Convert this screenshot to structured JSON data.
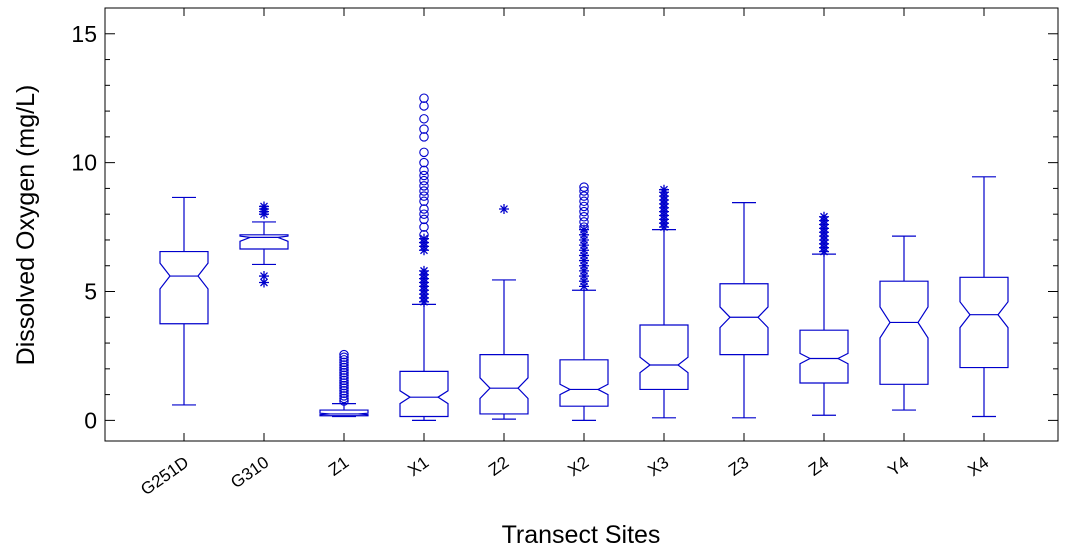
{
  "chart_data": {
    "type": "box",
    "xlabel": "Transect Sites",
    "ylabel": "Dissolved Oxygen (mg/L)",
    "ylim": [
      -0.8,
      16
    ],
    "yticks": [
      0,
      5,
      10,
      15
    ],
    "grid": false,
    "color": "#0000cc",
    "categories": [
      "G251D",
      "G310",
      "Z1",
      "X1",
      "Z2",
      "X2",
      "X3",
      "Z3",
      "Z4",
      "Y4",
      "X4"
    ],
    "boxes": [
      {
        "name": "G251D",
        "min": 0.6,
        "q1": 3.75,
        "median": 5.6,
        "q3": 6.55,
        "max": 8.65,
        "notch": [
          5.1,
          6.1
        ],
        "outliers": []
      },
      {
        "name": "G310",
        "min": 6.05,
        "q1": 6.65,
        "median": 7.1,
        "q3": 7.2,
        "max": 7.7,
        "notch": [
          6.95,
          7.15
        ],
        "outliers": [
          {
            "marker": "star",
            "values": [
              5.35,
              5.6,
              8.0,
              8.1,
              8.2,
              8.3
            ]
          }
        ]
      },
      {
        "name": "Z1",
        "min": 0.15,
        "q1": 0.18,
        "median": 0.25,
        "q3": 0.4,
        "max": 0.65,
        "notch": [
          0.22,
          0.28
        ],
        "outliers": [
          {
            "marker": "circle",
            "values": [
              0.75,
              0.85,
              0.95,
              1.05,
              1.15,
              1.25,
              1.35,
              1.45,
              1.55,
              1.65,
              1.75,
              1.85,
              1.95,
              2.05,
              2.15,
              2.25,
              2.35,
              2.45,
              2.55
            ]
          }
        ]
      },
      {
        "name": "X1",
        "min": 0.0,
        "q1": 0.15,
        "median": 0.9,
        "q3": 1.9,
        "max": 4.5,
        "notch": [
          0.65,
          1.15
        ],
        "outliers": [
          {
            "marker": "star",
            "values": [
              4.6,
              4.75,
              4.9,
              5.05,
              5.2,
              5.35,
              5.5,
              5.65,
              5.8,
              6.6,
              6.75,
              6.9,
              7.05
            ]
          },
          {
            "marker": "circle",
            "values": [
              7.2,
              7.5,
              7.8,
              8.0,
              8.2,
              8.5,
              8.7,
              8.9,
              9.1,
              9.3,
              9.5,
              9.7,
              10.0,
              10.4,
              11.0,
              11.3,
              11.7,
              12.2,
              12.5
            ]
          }
        ]
      },
      {
        "name": "Z2",
        "min": 0.05,
        "q1": 0.25,
        "median": 1.25,
        "q3": 2.55,
        "max": 5.45,
        "notch": [
          0.85,
          1.65
        ],
        "outliers": [
          {
            "marker": "star",
            "values": [
              8.2
            ]
          }
        ]
      },
      {
        "name": "X2",
        "min": 0.0,
        "q1": 0.55,
        "median": 1.2,
        "q3": 2.35,
        "max": 5.05,
        "notch": [
          1.0,
          1.4
        ],
        "outliers": [
          {
            "marker": "star",
            "values": [
              5.2,
              5.4,
              5.6,
              5.8,
              6.0,
              6.2,
              6.4,
              6.6,
              6.8,
              7.0,
              7.2,
              7.4
            ]
          },
          {
            "marker": "circle",
            "values": [
              7.5,
              7.7,
              7.9,
              8.1,
              8.3,
              8.5,
              8.7,
              8.9,
              9.05
            ]
          }
        ]
      },
      {
        "name": "X3",
        "min": 0.1,
        "q1": 1.2,
        "median": 2.15,
        "q3": 3.7,
        "max": 7.4,
        "notch": [
          1.85,
          2.45
        ],
        "outliers": [
          {
            "marker": "star",
            "values": [
              7.5,
              7.65,
              7.8,
              7.95,
              8.1,
              8.25,
              8.4,
              8.55,
              8.7,
              8.85,
              8.95
            ]
          }
        ]
      },
      {
        "name": "Z3",
        "min": 0.1,
        "q1": 2.55,
        "median": 4.0,
        "q3": 5.3,
        "max": 8.45,
        "notch": [
          3.6,
          4.4
        ],
        "outliers": []
      },
      {
        "name": "Z4",
        "min": 0.2,
        "q1": 1.45,
        "median": 2.4,
        "q3": 3.5,
        "max": 6.45,
        "notch": [
          2.2,
          2.6
        ],
        "outliers": [
          {
            "marker": "star",
            "values": [
              6.55,
              6.7,
              6.85,
              7.0,
              7.15,
              7.3,
              7.45,
              7.6,
              7.75,
              7.9
            ]
          }
        ]
      },
      {
        "name": "Y4",
        "min": 0.4,
        "q1": 1.4,
        "median": 3.8,
        "q3": 5.4,
        "max": 7.15,
        "notch": [
          3.2,
          4.4
        ],
        "outliers": []
      },
      {
        "name": "X4",
        "min": 0.15,
        "q1": 2.05,
        "median": 4.1,
        "q3": 5.55,
        "max": 9.45,
        "notch": [
          3.6,
          4.6
        ],
        "outliers": []
      }
    ]
  }
}
